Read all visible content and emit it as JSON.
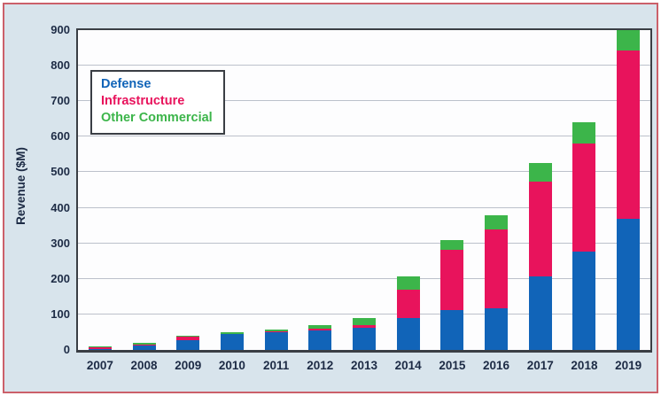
{
  "chart_data": {
    "type": "bar",
    "stacked": true,
    "title": "",
    "ylabel": "Revenue ($M)",
    "xlabel": "",
    "ylim": [
      0,
      900
    ],
    "ytick_interval": 100,
    "grid": true,
    "legend_position": "upper-left",
    "categories": [
      "2007",
      "2008",
      "2009",
      "2010",
      "2011",
      "2012",
      "2013",
      "2014",
      "2015",
      "2016",
      "2017",
      "2018",
      "2019"
    ],
    "series": [
      {
        "name": "Defense",
        "color": "#1164b8",
        "values": [
          2,
          13,
          27,
          45,
          50,
          56,
          63,
          90,
          112,
          116,
          208,
          277,
          370
        ]
      },
      {
        "name": "Infrastructure",
        "color": "#e8135c",
        "values": [
          6,
          3,
          10,
          1,
          2,
          4,
          6,
          80,
          170,
          222,
          265,
          303,
          472
        ]
      },
      {
        "name": "Other Commercial",
        "color": "#3cb54a",
        "values": [
          1,
          4,
          3,
          5,
          6,
          10,
          22,
          37,
          26,
          40,
          52,
          60,
          58
        ]
      }
    ],
    "totals": [
      9,
      20,
      40,
      51,
      58,
      70,
      91,
      207,
      308,
      378,
      525,
      640,
      900
    ]
  },
  "style_colors": {
    "panel_background": "#d8e4ec",
    "frame_border": "#cb606a",
    "axis_text": "#1d2b45",
    "plot_border": "#3a3e44",
    "gridline": "#bcc1cb"
  }
}
